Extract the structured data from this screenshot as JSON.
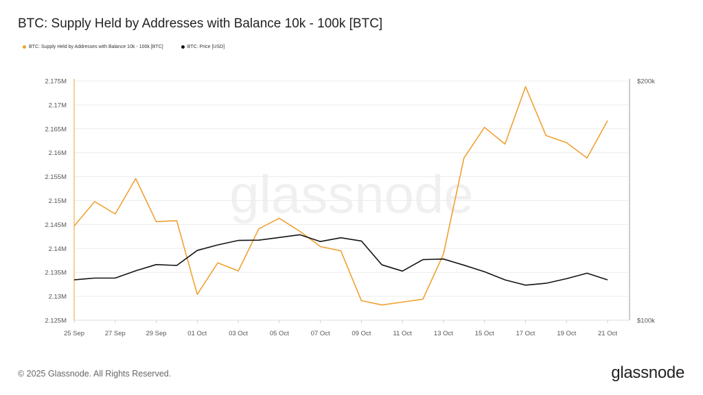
{
  "title": "BTC: Supply Held by Addresses with Balance 10k - 100k [BTC]",
  "legend": [
    {
      "label": "BTC: Supply Held by Addresses with Balance 10k - 100k [BTC]",
      "color": "#f0a030"
    },
    {
      "label": "BTC: Price [USD]",
      "color": "#111111"
    }
  ],
  "watermark": "glassnode",
  "footer": {
    "copyright": "© 2025 Glassnode. All Rights Reserved.",
    "logo": "glassnode"
  },
  "chart_data": {
    "type": "line",
    "x": [
      "25 Sep",
      "26 Sep",
      "27 Sep",
      "28 Sep",
      "29 Sep",
      "30 Sep",
      "01 Oct",
      "02 Oct",
      "03 Oct",
      "04 Oct",
      "05 Oct",
      "06 Oct",
      "07 Oct",
      "08 Oct",
      "09 Oct",
      "10 Oct",
      "11 Oct",
      "12 Oct",
      "13 Oct",
      "14 Oct",
      "15 Oct",
      "16 Oct",
      "17 Oct",
      "18 Oct",
      "19 Oct",
      "20 Oct",
      "21 Oct"
    ],
    "x_tick_labels": [
      "25 Sep",
      "27 Sep",
      "29 Sep",
      "01 Oct",
      "03 Oct",
      "05 Oct",
      "07 Oct",
      "09 Oct",
      "11 Oct",
      "13 Oct",
      "15 Oct",
      "17 Oct",
      "19 Oct",
      "21 Oct"
    ],
    "series": [
      {
        "name": "BTC: Supply Held by Addresses with Balance 10k - 100k [BTC]",
        "axis": "left",
        "color": "#f0a030",
        "values": [
          2144700,
          2149800,
          2147200,
          2154600,
          2145600,
          2145800,
          2130400,
          2137000,
          2135300,
          2144100,
          2146300,
          2143600,
          2140400,
          2139500,
          2129100,
          2128200,
          2128800,
          2129400,
          2138800,
          2158900,
          2165300,
          2161800,
          2173800,
          2163600,
          2162100,
          2158900,
          2166700
        ]
      },
      {
        "name": "BTC: Price [USD]",
        "axis": "right",
        "color": "#111111",
        "values": [
          112400,
          113000,
          113000,
          115400,
          117500,
          117200,
          122400,
          124400,
          126000,
          126100,
          127100,
          128100,
          125600,
          127000,
          125800,
          117400,
          115300,
          119200,
          119400,
          117300,
          115100,
          112400,
          110700,
          111300,
          112800,
          114600,
          112400
        ]
      }
    ],
    "y_left": {
      "ticks": [
        2125000,
        2130000,
        2135000,
        2140000,
        2145000,
        2150000,
        2155000,
        2160000,
        2165000,
        2170000,
        2175000
      ],
      "tick_labels": [
        "2.125M",
        "2.13M",
        "2.135M",
        "2.14M",
        "2.145M",
        "2.15M",
        "2.155M",
        "2.16M",
        "2.165M",
        "2.17M",
        "2.175M"
      ],
      "range": [
        2125000,
        2175000
      ]
    },
    "y_right": {
      "scale": "log",
      "range": [
        100000,
        200000
      ],
      "tick_labels": [
        "$100k",
        "$200k"
      ],
      "ticks": [
        100000,
        200000
      ]
    },
    "grid": true,
    "legend_position": "top-left"
  }
}
